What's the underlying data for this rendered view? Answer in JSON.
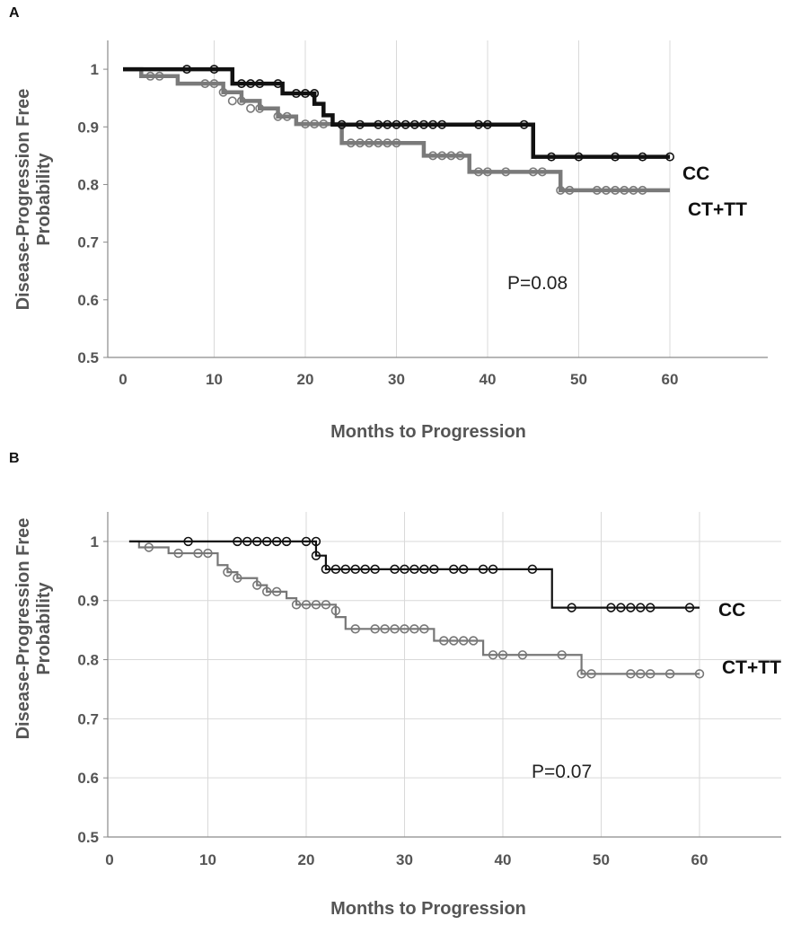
{
  "panels": [
    {
      "label": "A"
    },
    {
      "label": "B"
    }
  ],
  "chart_data": [
    {
      "type": "line",
      "step": true,
      "panel": "A",
      "xlabel": "Months to Progression",
      "ylabel": "Disease-Progression Free Probability",
      "xlim": [
        0,
        60
      ],
      "ylim": [
        0.5,
        1.05
      ],
      "xticks": [
        "0",
        "10",
        "20",
        "30",
        "40",
        "50",
        "60"
      ],
      "yticks": [
        "0.5",
        "0.6",
        "0.7",
        "0.8",
        "0.9",
        "1"
      ],
      "grid": "vertical",
      "annotation": "P=0.08",
      "series": [
        {
          "name": "CC",
          "color": "#111111",
          "x": [
            0,
            12,
            17.5,
            21,
            22,
            23,
            45,
            60
          ],
          "y": [
            1.0,
            0.975,
            0.958,
            0.94,
            0.92,
            0.904,
            0.848,
            0.848
          ],
          "censor_x": [
            7,
            10,
            13,
            14,
            15,
            17,
            19,
            20,
            21,
            24,
            26,
            28,
            29,
            30,
            31,
            32,
            33,
            34,
            35,
            39,
            40,
            44,
            47,
            50,
            54,
            57,
            60
          ],
          "censor_y": [
            1.0,
            1.0,
            0.975,
            0.975,
            0.975,
            0.975,
            0.958,
            0.958,
            0.958,
            0.904,
            0.904,
            0.904,
            0.904,
            0.904,
            0.904,
            0.904,
            0.904,
            0.904,
            0.904,
            0.904,
            0.904,
            0.904,
            0.848,
            0.848,
            0.848,
            0.848,
            0.848
          ]
        },
        {
          "name": "CT+TT",
          "color": "#7a7a7a",
          "x": [
            0,
            2,
            6,
            11,
            13,
            15,
            17,
            19,
            24,
            33,
            38,
            48,
            60
          ],
          "y": [
            1.0,
            0.988,
            0.975,
            0.96,
            0.945,
            0.932,
            0.918,
            0.905,
            0.872,
            0.85,
            0.822,
            0.79,
            0.79
          ],
          "censor_x": [
            3,
            4,
            9,
            10,
            11,
            12,
            13,
            14,
            15,
            17,
            18,
            20,
            21,
            22,
            25,
            26,
            27,
            28,
            29,
            30,
            34,
            35,
            36,
            37,
            39,
            40,
            42,
            45,
            46,
            48,
            49,
            52,
            53,
            54,
            55,
            56,
            57
          ],
          "censor_y": [
            0.988,
            0.988,
            0.975,
            0.975,
            0.96,
            0.945,
            0.945,
            0.932,
            0.932,
            0.918,
            0.918,
            0.905,
            0.905,
            0.905,
            0.872,
            0.872,
            0.872,
            0.872,
            0.872,
            0.872,
            0.85,
            0.85,
            0.85,
            0.85,
            0.822,
            0.822,
            0.822,
            0.822,
            0.822,
            0.79,
            0.79,
            0.79,
            0.79,
            0.79,
            0.79,
            0.79,
            0.79
          ]
        }
      ]
    },
    {
      "type": "line",
      "step": true,
      "panel": "B",
      "xlabel": "Months to Progression",
      "ylabel": "Disease-Progression Free Probability",
      "xlim": [
        0,
        70
      ],
      "ylim": [
        0.5,
        1.05
      ],
      "xticks": [
        "0",
        "10",
        "20",
        "30",
        "40",
        "50",
        "60"
      ],
      "yticks": [
        "0.5",
        "0.6",
        "0.7",
        "0.8",
        "0.9",
        "1"
      ],
      "grid": "both",
      "annotation": "P=0.07",
      "series": [
        {
          "name": "CC",
          "color": "#111111",
          "x": [
            2,
            21,
            22,
            45,
            60
          ],
          "y": [
            1.0,
            0.976,
            0.953,
            0.888,
            0.888
          ],
          "censor_x": [
            8,
            13,
            14,
            15,
            16,
            17,
            18,
            20,
            21,
            21,
            22,
            23,
            24,
            25,
            26,
            27,
            29,
            30,
            31,
            32,
            33,
            35,
            36,
            38,
            39,
            43,
            47,
            51,
            52,
            53,
            54,
            55,
            59
          ],
          "censor_y": [
            1.0,
            1.0,
            1.0,
            1.0,
            1.0,
            1.0,
            1.0,
            1.0,
            1.0,
            0.976,
            0.953,
            0.953,
            0.953,
            0.953,
            0.953,
            0.953,
            0.953,
            0.953,
            0.953,
            0.953,
            0.953,
            0.953,
            0.953,
            0.953,
            0.953,
            0.953,
            0.888,
            0.888,
            0.888,
            0.888,
            0.888,
            0.888,
            0.888
          ]
        },
        {
          "name": "CT+TT",
          "color": "#777777",
          "x": [
            2,
            3,
            6,
            11,
            12,
            13,
            15,
            16,
            18,
            19,
            23,
            24,
            33,
            38,
            48,
            60
          ],
          "y": [
            1.0,
            0.99,
            0.98,
            0.96,
            0.948,
            0.938,
            0.926,
            0.915,
            0.904,
            0.893,
            0.872,
            0.852,
            0.832,
            0.808,
            0.776,
            0.776
          ],
          "censor_x": [
            4,
            7,
            9,
            10,
            12,
            13,
            15,
            16,
            17,
            19,
            20,
            21,
            22,
            23,
            25,
            27,
            28,
            29,
            30,
            31,
            32,
            34,
            35,
            36,
            37,
            39,
            40,
            42,
            46,
            48,
            49,
            53,
            54,
            55,
            57,
            60
          ],
          "censor_y": [
            0.99,
            0.98,
            0.98,
            0.98,
            0.948,
            0.938,
            0.926,
            0.915,
            0.915,
            0.893,
            0.893,
            0.893,
            0.893,
            0.883,
            0.852,
            0.852,
            0.852,
            0.852,
            0.852,
            0.852,
            0.852,
            0.832,
            0.832,
            0.832,
            0.832,
            0.808,
            0.808,
            0.808,
            0.808,
            0.776,
            0.776,
            0.776,
            0.776,
            0.776,
            0.776,
            0.776
          ]
        }
      ]
    }
  ]
}
